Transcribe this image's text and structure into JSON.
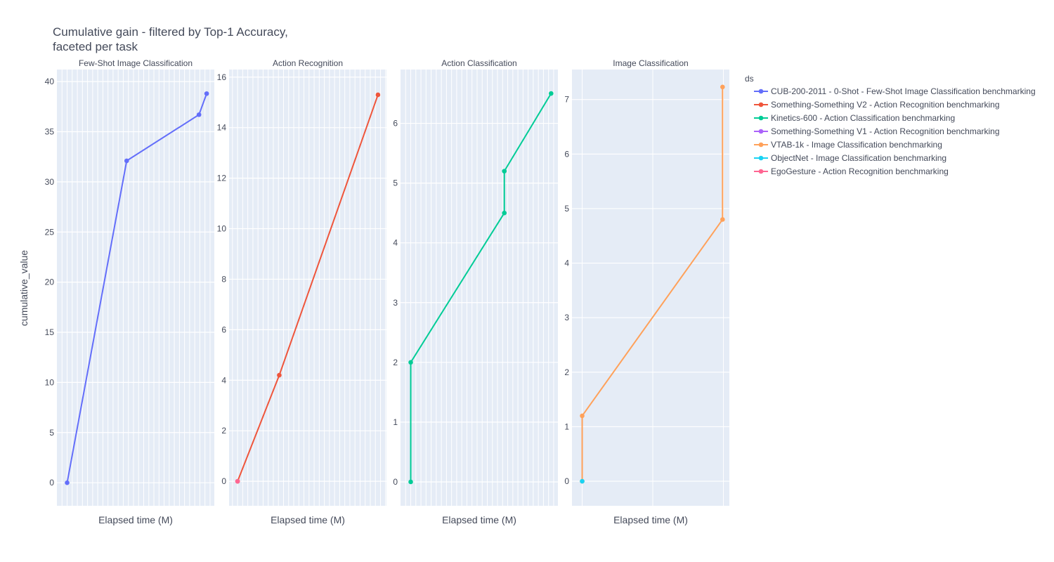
{
  "chart_data": {
    "type": "line",
    "title_lines": [
      "Cumulative gain - filtered by Top-1 Accuracy,",
      "faceted per task"
    ],
    "xlabel": "Elapsed time (M)",
    "ylabel": "cumulative_value",
    "legend": {
      "title": "ds",
      "placement": "top-right",
      "entries": [
        {
          "name": "CUB-200-2011 - 0-Shot - Few-Shot Image Classification benchmarking",
          "color": "#636efa"
        },
        {
          "name": "Something-Something V2 - Action Recognition benchmarking",
          "color": "#ef553b"
        },
        {
          "name": "Kinetics-600 - Action Classification benchmarking",
          "color": "#00cc96"
        },
        {
          "name": "Something-Something V1 - Action Recognition benchmarking",
          "color": "#ab63fa"
        },
        {
          "name": "VTAB-1k - Image Classification benchmarking",
          "color": "#ffa15a"
        },
        {
          "name": "ObjectNet - Image Classification benchmarking",
          "color": "#19d3f3"
        },
        {
          "name": "EgoGesture - Action Recognition benchmarking",
          "color": "#ff6692"
        }
      ]
    },
    "facets": [
      {
        "title": "Few-Shot Image Classification",
        "xlim": [
          -1.2,
          17.3
        ],
        "ylim": [
          -2.3,
          41.2
        ],
        "yticks": [
          0,
          5,
          10,
          15,
          20,
          25,
          30,
          35,
          40
        ],
        "xgrid_step": 0.6,
        "series": [
          {
            "legend_index": 0,
            "x": [
              0,
              7,
              15.5,
              16.4
            ],
            "y": [
              0,
              32.1,
              36.7,
              38.8
            ]
          }
        ]
      },
      {
        "title": "Action Recognition",
        "xlim": [
          -1,
          17.5
        ],
        "ylim": [
          -0.97,
          16.3
        ],
        "yticks": [
          0,
          2,
          4,
          6,
          8,
          10,
          12,
          14,
          16
        ],
        "xgrid_step": 0.6,
        "series": [
          {
            "legend_index": 1,
            "x": [
              0,
              4.9,
              16.5
            ],
            "y": [
              0,
              4.2,
              15.3
            ]
          },
          {
            "legend_index": 6,
            "x": [
              0
            ],
            "y": [
              0
            ]
          }
        ]
      },
      {
        "title": "Action Classification",
        "xlim": [
          -1.2,
          17.3
        ],
        "ylim": [
          -0.4,
          6.9
        ],
        "yticks": [
          0,
          1,
          2,
          3,
          4,
          5,
          6
        ],
        "xgrid_step": 0.6,
        "series": [
          {
            "legend_index": 2,
            "x": [
              0,
              0,
              11,
              11,
              16.5
            ],
            "y": [
              0,
              2,
              4.5,
              5.2,
              6.5
            ]
          }
        ]
      },
      {
        "title": "Image Classification",
        "xlim": [
          -1.2,
          17.3
        ],
        "ylim": [
          -0.45,
          7.55
        ],
        "yticks": [
          0,
          1,
          2,
          3,
          4,
          5,
          6,
          7
        ],
        "xgrid_step": 8.3,
        "series": [
          {
            "legend_index": 4,
            "x": [
              0,
              0,
              16.5,
              16.5
            ],
            "y": [
              0,
              1.2,
              4.8,
              7.23
            ]
          },
          {
            "legend_index": 5,
            "x": [
              0
            ],
            "y": [
              0
            ]
          }
        ]
      }
    ]
  }
}
